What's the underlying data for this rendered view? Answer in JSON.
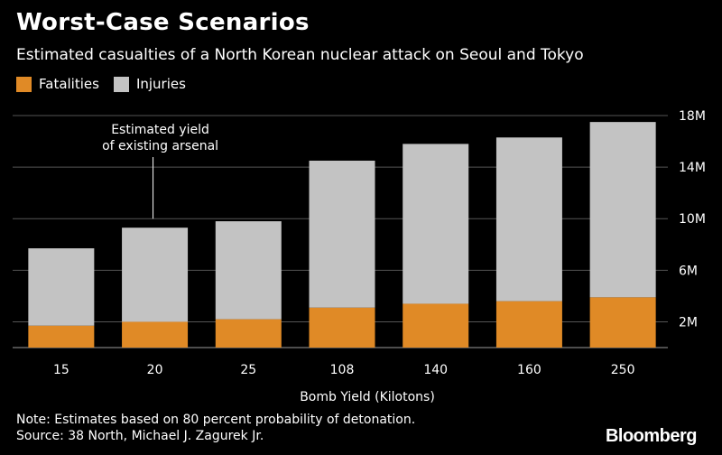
{
  "header": {
    "title": "Worst-Case Scenarios",
    "subtitle": "Estimated casualties of a North Korean nuclear attack on Seoul and Tokyo"
  },
  "footer": {
    "note": "Note: Estimates based on 80 percent probability of detonation.",
    "source": "Source: 38 North, Michael J. Zagurek Jr.",
    "brand": "Bloomberg"
  },
  "colors": {
    "background": "#000000",
    "fatalities": "#e08a26",
    "injuries": "#c3c3c3",
    "text": "#ffffff",
    "grid": "#555555"
  },
  "chart_data": {
    "type": "bar",
    "stacked": true,
    "title": "Worst-Case Scenarios",
    "subtitle": "Estimated casualties of a North Korean nuclear attack on Seoul and Tokyo",
    "xlabel": "Bomb Yield (Kilotons)",
    "ylabel": "",
    "categories": [
      "15",
      "20",
      "25",
      "108",
      "140",
      "160",
      "250"
    ],
    "series": [
      {
        "name": "Fatalities",
        "values": [
          1.7,
          2.0,
          2.2,
          3.1,
          3.4,
          3.6,
          3.9
        ]
      },
      {
        "name": "Injuries",
        "values": [
          6.0,
          7.3,
          7.6,
          11.4,
          12.4,
          12.7,
          13.6
        ]
      }
    ],
    "ylim": [
      0,
      18
    ],
    "yticks": [
      2,
      6,
      10,
      14,
      18
    ],
    "ytick_labels": [
      "2M",
      "6M",
      "10M",
      "14M",
      "18M"
    ],
    "grid": true,
    "legend_position": "top-left",
    "annotation": {
      "text_line1": "Estimated yield",
      "text_line2": "of existing arsenal",
      "category": "20"
    }
  }
}
